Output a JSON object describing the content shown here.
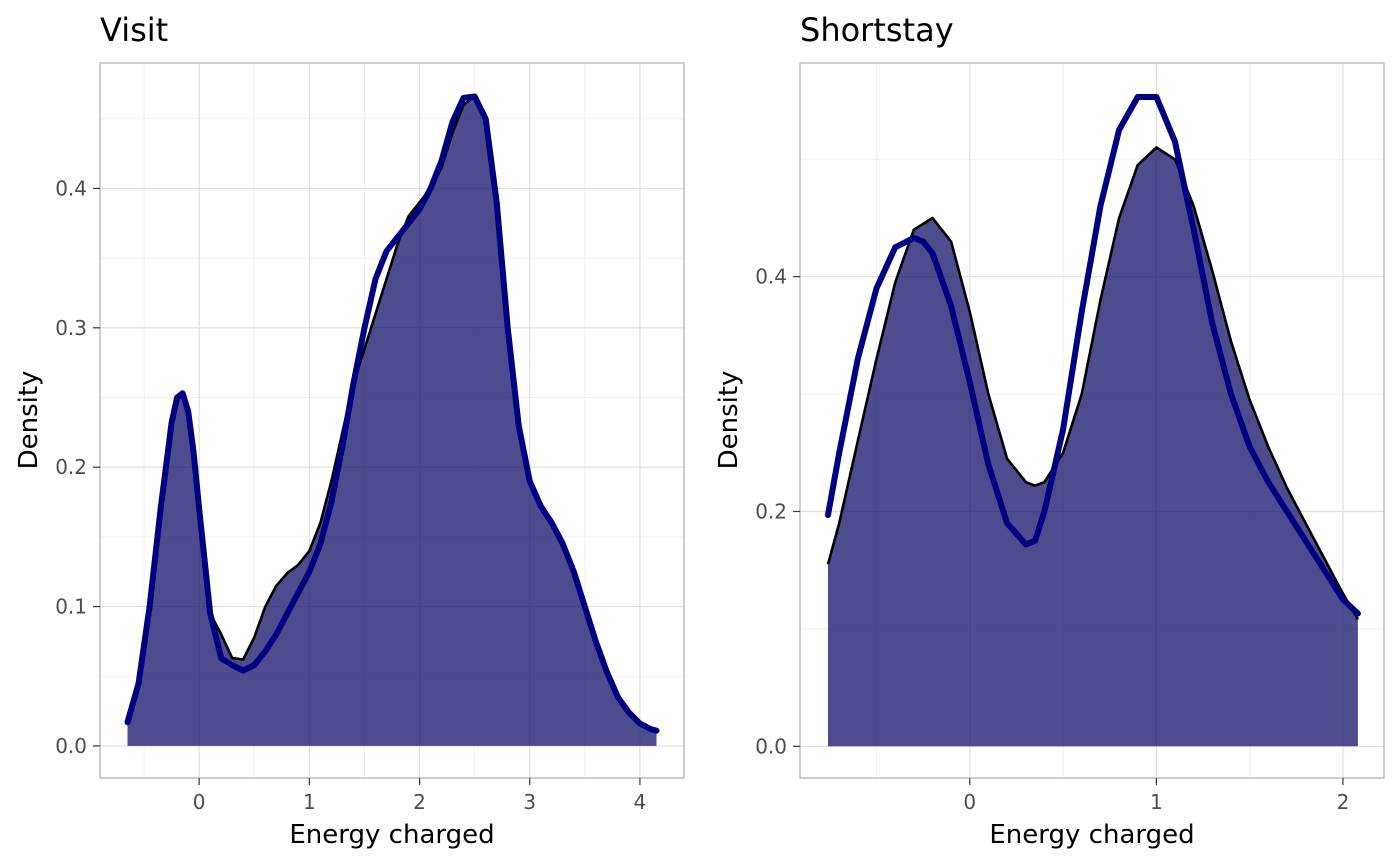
{
  "chart_data": [
    {
      "type": "area",
      "title": "Visit",
      "xlabel": "Energy charged",
      "ylabel": "Density",
      "xlim": [
        -0.9,
        4.4
      ],
      "ylim": [
        -0.023,
        0.49
      ],
      "xticks": [
        0,
        1,
        2,
        3,
        4
      ],
      "yticks": [
        0.0,
        0.1,
        0.2,
        0.3,
        0.4
      ],
      "grid": true,
      "fill_color": "#191970",
      "fill_opacity": 0.78,
      "series": [
        {
          "style": "filled",
          "stroke": "#000000",
          "x": [
            -0.65,
            -0.55,
            -0.45,
            -0.35,
            -0.25,
            -0.2,
            -0.15,
            -0.1,
            -0.05,
            0.0,
            0.1,
            0.2,
            0.3,
            0.4,
            0.5,
            0.6,
            0.7,
            0.8,
            0.9,
            1.0,
            1.1,
            1.2,
            1.3,
            1.4,
            1.5,
            1.6,
            1.7,
            1.8,
            1.9,
            2.0,
            2.1,
            2.2,
            2.3,
            2.4,
            2.5,
            2.6,
            2.7,
            2.8,
            2.9,
            3.0,
            3.1,
            3.2,
            3.3,
            3.4,
            3.5,
            3.6,
            3.7,
            3.8,
            3.9,
            4.0,
            4.1,
            4.15
          ],
          "y": [
            0.017,
            0.045,
            0.1,
            0.17,
            0.232,
            0.25,
            0.252,
            0.24,
            0.21,
            0.17,
            0.095,
            0.08,
            0.063,
            0.062,
            0.078,
            0.1,
            0.115,
            0.124,
            0.13,
            0.14,
            0.16,
            0.19,
            0.225,
            0.26,
            0.285,
            0.31,
            0.335,
            0.36,
            0.38,
            0.39,
            0.4,
            0.415,
            0.44,
            0.46,
            0.466,
            0.45,
            0.39,
            0.3,
            0.23,
            0.19,
            0.172,
            0.16,
            0.145,
            0.125,
            0.1,
            0.075,
            0.053,
            0.035,
            0.024,
            0.016,
            0.012,
            0.011
          ]
        },
        {
          "style": "line",
          "stroke": "#000080",
          "x": [
            -0.65,
            -0.55,
            -0.45,
            -0.35,
            -0.25,
            -0.2,
            -0.15,
            -0.1,
            -0.05,
            0.0,
            0.1,
            0.2,
            0.3,
            0.4,
            0.5,
            0.6,
            0.7,
            0.8,
            0.9,
            1.0,
            1.1,
            1.2,
            1.3,
            1.4,
            1.5,
            1.6,
            1.7,
            1.8,
            1.9,
            2.0,
            2.1,
            2.2,
            2.3,
            2.4,
            2.5,
            2.6,
            2.7,
            2.8,
            2.9,
            3.0,
            3.1,
            3.2,
            3.3,
            3.4,
            3.5,
            3.6,
            3.7,
            3.8,
            3.9,
            4.0,
            4.1,
            4.15
          ],
          "y": [
            0.017,
            0.045,
            0.1,
            0.17,
            0.232,
            0.25,
            0.253,
            0.24,
            0.21,
            0.17,
            0.095,
            0.063,
            0.058,
            0.054,
            0.058,
            0.068,
            0.08,
            0.095,
            0.11,
            0.125,
            0.145,
            0.175,
            0.215,
            0.26,
            0.3,
            0.335,
            0.355,
            0.365,
            0.375,
            0.385,
            0.4,
            0.42,
            0.448,
            0.465,
            0.466,
            0.45,
            0.39,
            0.3,
            0.23,
            0.19,
            0.172,
            0.16,
            0.145,
            0.125,
            0.1,
            0.075,
            0.053,
            0.035,
            0.024,
            0.016,
            0.012,
            0.011
          ]
        }
      ]
    },
    {
      "type": "area",
      "title": "Shortstay",
      "xlabel": "Energy charged",
      "ylabel": "Density",
      "xlim": [
        -0.91,
        2.22
      ],
      "ylim": [
        -0.027,
        0.582
      ],
      "xticks": [
        0,
        1,
        2
      ],
      "yticks": [
        0.0,
        0.2,
        0.4
      ],
      "grid": true,
      "fill_color": "#191970",
      "fill_opacity": 0.78,
      "series": [
        {
          "style": "filled",
          "stroke": "#000000",
          "x": [
            -0.76,
            -0.7,
            -0.6,
            -0.5,
            -0.4,
            -0.3,
            -0.2,
            -0.1,
            0.0,
            0.1,
            0.2,
            0.3,
            0.35,
            0.4,
            0.5,
            0.6,
            0.7,
            0.8,
            0.9,
            1.0,
            1.1,
            1.2,
            1.3,
            1.4,
            1.5,
            1.6,
            1.7,
            1.8,
            1.9,
            2.0,
            2.08
          ],
          "y": [
            0.155,
            0.19,
            0.26,
            0.33,
            0.395,
            0.44,
            0.45,
            0.43,
            0.37,
            0.3,
            0.245,
            0.225,
            0.222,
            0.225,
            0.25,
            0.3,
            0.38,
            0.45,
            0.495,
            0.51,
            0.5,
            0.46,
            0.405,
            0.345,
            0.295,
            0.255,
            0.22,
            0.19,
            0.16,
            0.13,
            0.108
          ]
        },
        {
          "style": "line",
          "stroke": "#000080",
          "x": [
            -0.76,
            -0.7,
            -0.6,
            -0.5,
            -0.4,
            -0.3,
            -0.25,
            -0.2,
            -0.1,
            0.0,
            0.1,
            0.2,
            0.3,
            0.35,
            0.4,
            0.5,
            0.6,
            0.7,
            0.8,
            0.9,
            1.0,
            1.1,
            1.2,
            1.3,
            1.4,
            1.5,
            1.6,
            1.7,
            1.8,
            1.9,
            2.0,
            2.08
          ],
          "y": [
            0.197,
            0.25,
            0.33,
            0.39,
            0.425,
            0.433,
            0.43,
            0.42,
            0.375,
            0.31,
            0.24,
            0.19,
            0.172,
            0.175,
            0.2,
            0.27,
            0.37,
            0.46,
            0.525,
            0.553,
            0.553,
            0.515,
            0.44,
            0.36,
            0.3,
            0.255,
            0.225,
            0.2,
            0.175,
            0.15,
            0.125,
            0.113
          ]
        }
      ]
    }
  ]
}
